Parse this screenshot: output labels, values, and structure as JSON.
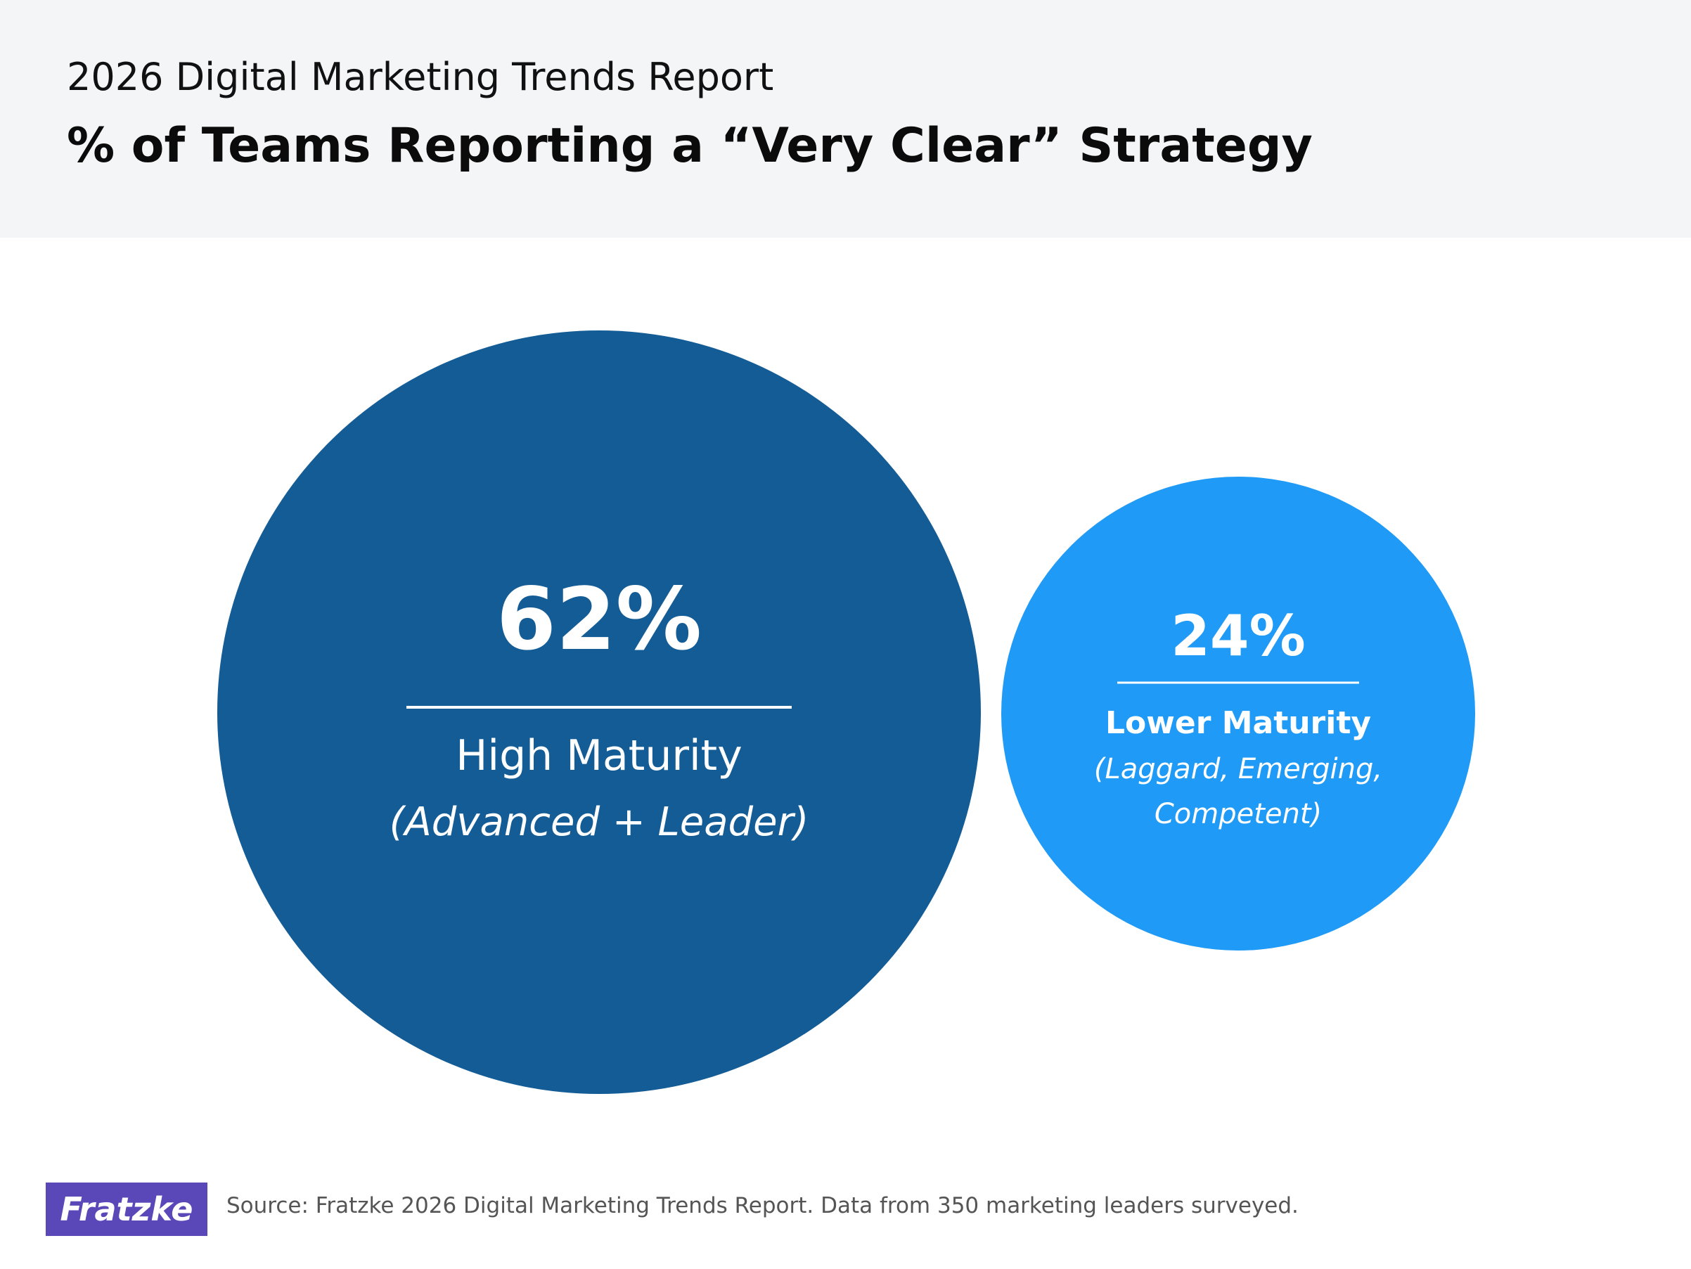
{
  "header": {
    "supertitle": "2026 Digital Marketing Trends Report",
    "title": "% of Teams Reporting a “Very Clear” Strategy"
  },
  "chart_data": {
    "type": "bubble",
    "title": "% of Teams Reporting a “Very Clear” Strategy",
    "series": [
      {
        "value": 62,
        "value_label": "62%",
        "label": "High Maturity",
        "sublabel_lines": [
          "(Advanced + Leader)"
        ],
        "color": "#145c96"
      },
      {
        "value": 24,
        "value_label": "24%",
        "label": "Lower Maturity",
        "sublabel_lines": [
          "(Laggard, Emerging,",
          "Competent)"
        ],
        "color": "#1f9af6"
      }
    ]
  },
  "footer": {
    "logo_text": "Fratzke",
    "logo_color": "#5a48b8",
    "source": "Source: Fratzke 2026 Digital Marketing Trends Report. Data from 350 marketing leaders surveyed."
  }
}
